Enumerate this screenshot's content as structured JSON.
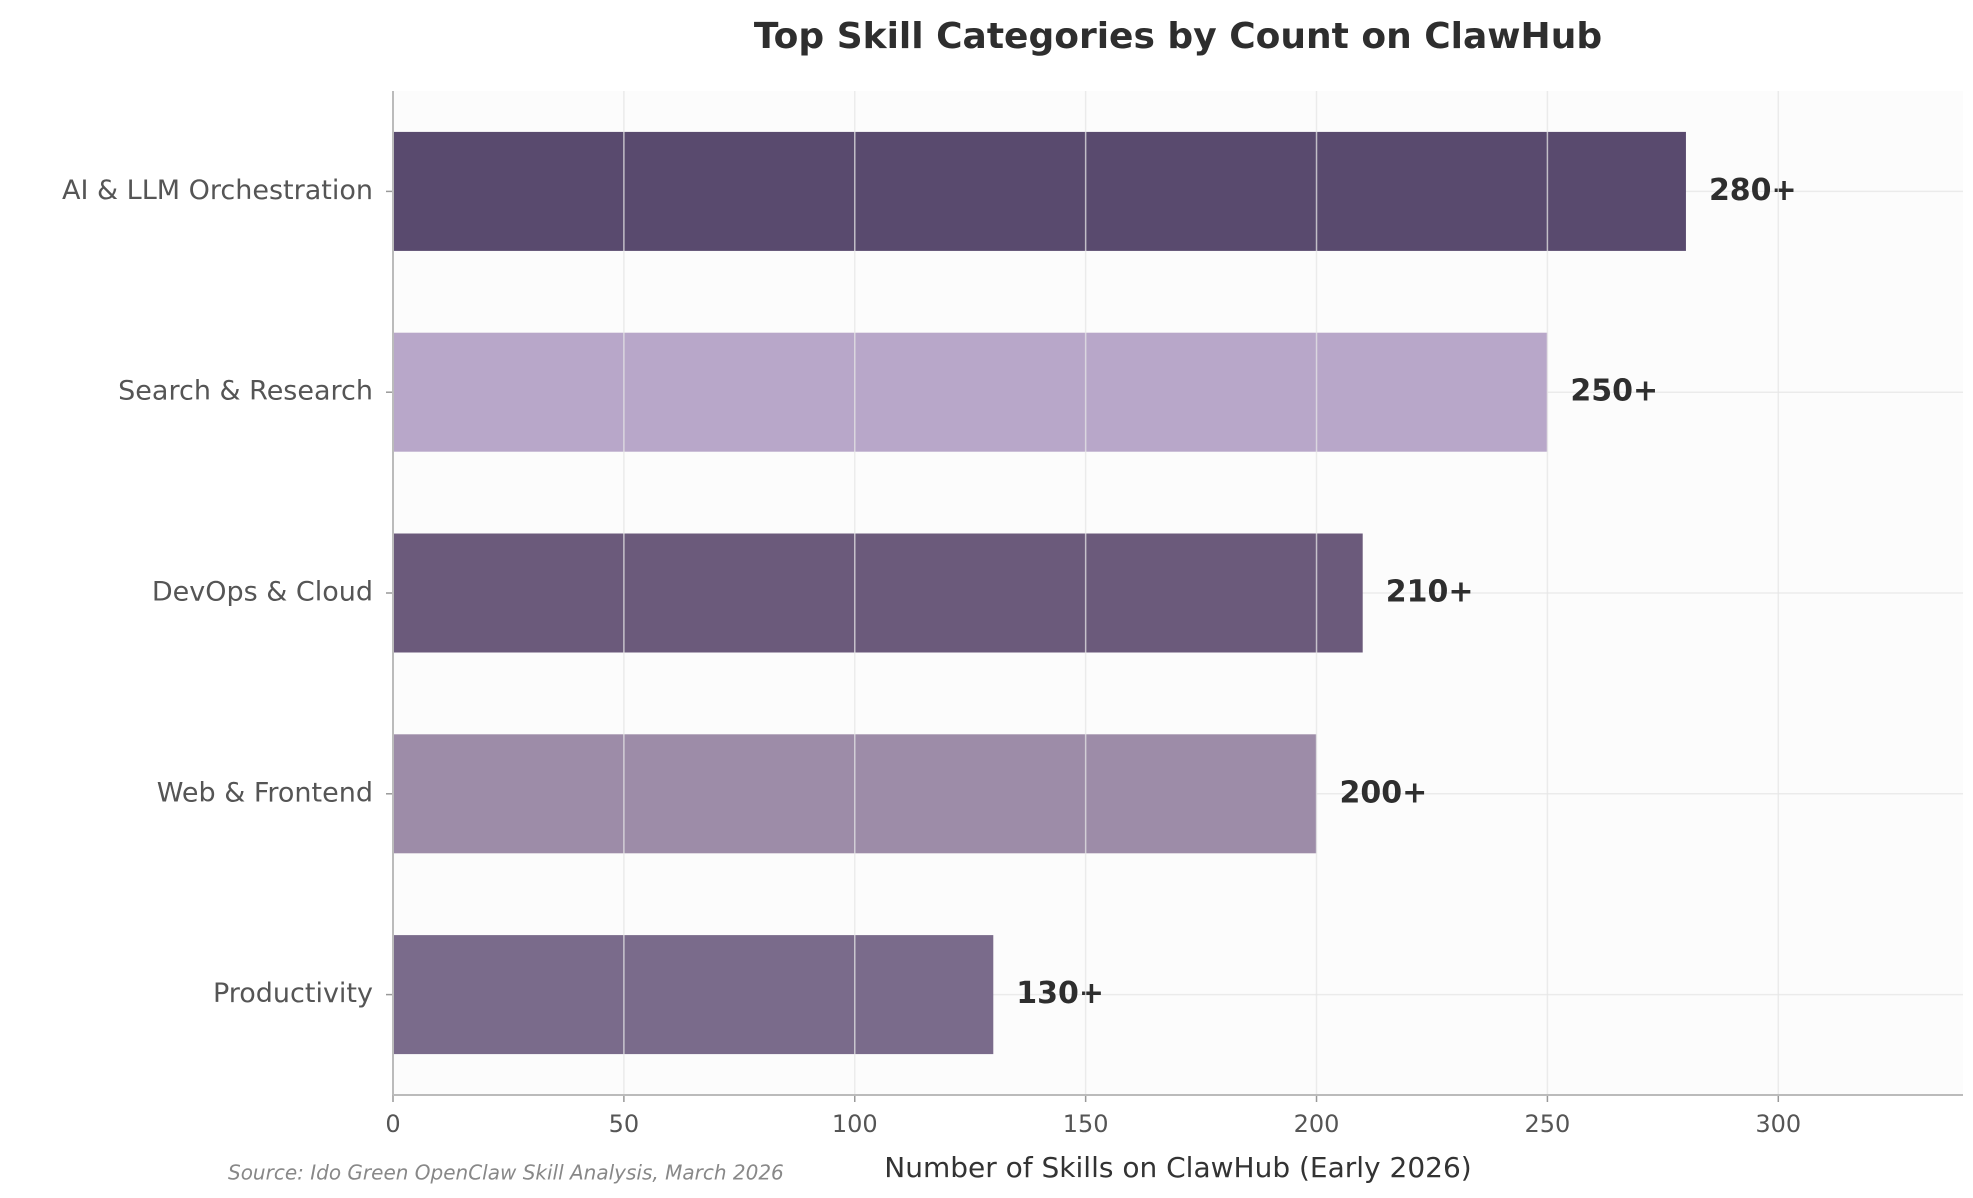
{
  "chart_data": {
    "type": "bar",
    "orientation": "horizontal",
    "title": "Top Skill Categories by Count on ClawHub",
    "x_label": "Number of Skills on ClawHub (Early 2026)",
    "source": "Source: Ido Green OpenClaw Skill Analysis, March 2026",
    "categories": [
      "AI & LLM Orchestration",
      "Search & Research",
      "DevOps & Cloud",
      "Web & Frontend",
      "Productivity"
    ],
    "values": [
      280,
      250,
      210,
      200,
      130
    ],
    "value_labels": [
      "280+",
      "250+",
      "210+",
      "200+",
      "130+"
    ],
    "colors": [
      "#594a6e",
      "#b8a7c9",
      "#6b5a7b",
      "#9d8ca8",
      "#7a6b8b"
    ],
    "xlim": [
      0,
      340
    ],
    "xticks": [
      0,
      50,
      100,
      150,
      200,
      250,
      300
    ],
    "grid": true
  }
}
